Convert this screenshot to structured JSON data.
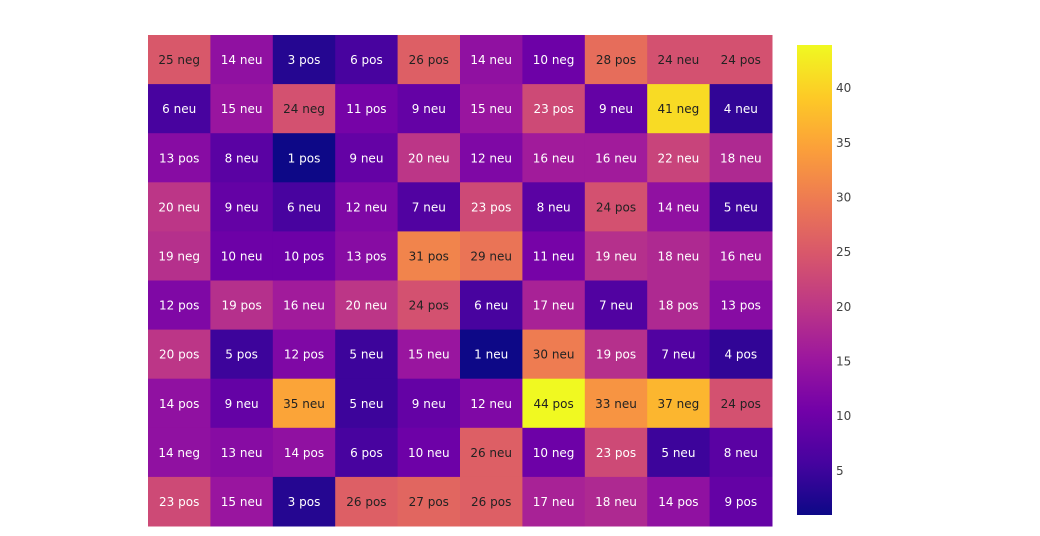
{
  "chart_data": {
    "type": "heatmap",
    "values": [
      [
        25,
        14,
        3,
        6,
        26,
        14,
        10,
        28,
        24,
        24
      ],
      [
        6,
        15,
        24,
        11,
        9,
        15,
        23,
        9,
        41,
        4
      ],
      [
        13,
        8,
        1,
        9,
        20,
        12,
        16,
        16,
        22,
        18
      ],
      [
        20,
        9,
        6,
        12,
        7,
        23,
        8,
        24,
        14,
        5
      ],
      [
        19,
        10,
        10,
        13,
        31,
        29,
        11,
        19,
        18,
        16
      ],
      [
        12,
        19,
        16,
        20,
        24,
        6,
        17,
        7,
        18,
        13
      ],
      [
        20,
        5,
        12,
        5,
        15,
        1,
        30,
        19,
        7,
        4
      ],
      [
        14,
        9,
        35,
        5,
        9,
        12,
        44,
        33,
        37,
        24
      ],
      [
        14,
        13,
        14,
        6,
        10,
        26,
        10,
        23,
        5,
        8
      ],
      [
        23,
        15,
        3,
        26,
        27,
        26,
        17,
        18,
        14,
        9
      ]
    ],
    "value_labels": [
      [
        "25 neg",
        "14 neu",
        "3 pos",
        "6 pos",
        "26 pos",
        "14 neu",
        "10 neg",
        "28 pos",
        "24 neu",
        "24 pos"
      ],
      [
        "6 neu",
        "15 neu",
        "24 neg",
        "11 pos",
        "9 neu",
        "15 neu",
        "23 pos",
        "9 neu",
        "41 neg",
        "4 neu"
      ],
      [
        "13 pos",
        "8 neu",
        "1 pos",
        "9 neu",
        "20 neu",
        "12 neu",
        "16 neu",
        "16 neu",
        "22 neu",
        "18 neu"
      ],
      [
        "20 neu",
        "9 neu",
        "6 neu",
        "12 neu",
        "7 neu",
        "23 pos",
        "8 neu",
        "24 pos",
        "14 neu",
        "5 neu"
      ],
      [
        "19 neg",
        "10 neu",
        "10 pos",
        "13 pos",
        "31 pos",
        "29 neu",
        "11 neu",
        "19 neu",
        "18 neu",
        "16 neu"
      ],
      [
        "12 pos",
        "19 pos",
        "16 neu",
        "20 neu",
        "24 pos",
        "6 neu",
        "17 neu",
        "7 neu",
        "18 pos",
        "13 pos"
      ],
      [
        "20 pos",
        "5 pos",
        "12 pos",
        "5 neu",
        "15 neu",
        "1 neu",
        "30 neu",
        "19 pos",
        "7 neu",
        "4 pos"
      ],
      [
        "14 pos",
        "9 neu",
        "35 neu",
        "5 neu",
        "9 neu",
        "12 neu",
        "44 pos",
        "33 neu",
        "37 neg",
        "24 pos"
      ],
      [
        "14 neg",
        "13 neu",
        "14 pos",
        "6 pos",
        "10 neu",
        "26 neu",
        "10 neg",
        "23 pos",
        "5 neu",
        "8 neu"
      ],
      [
        "23 pos",
        "15 neu",
        "3 pos",
        "26 pos",
        "27 pos",
        "26 pos",
        "17 neu",
        "18 neu",
        "14 pos",
        "9 pos"
      ]
    ],
    "zlim": [
      1,
      44
    ],
    "zticks": [
      5,
      10,
      15,
      20,
      25,
      30,
      35,
      40
    ],
    "colorscale": [
      "#0d0887",
      "#46039f",
      "#7201a8",
      "#9c179e",
      "#bd3786",
      "#d8576b",
      "#ed7953",
      "#fb9f3a",
      "#fdca26",
      "#f0f921"
    ]
  }
}
